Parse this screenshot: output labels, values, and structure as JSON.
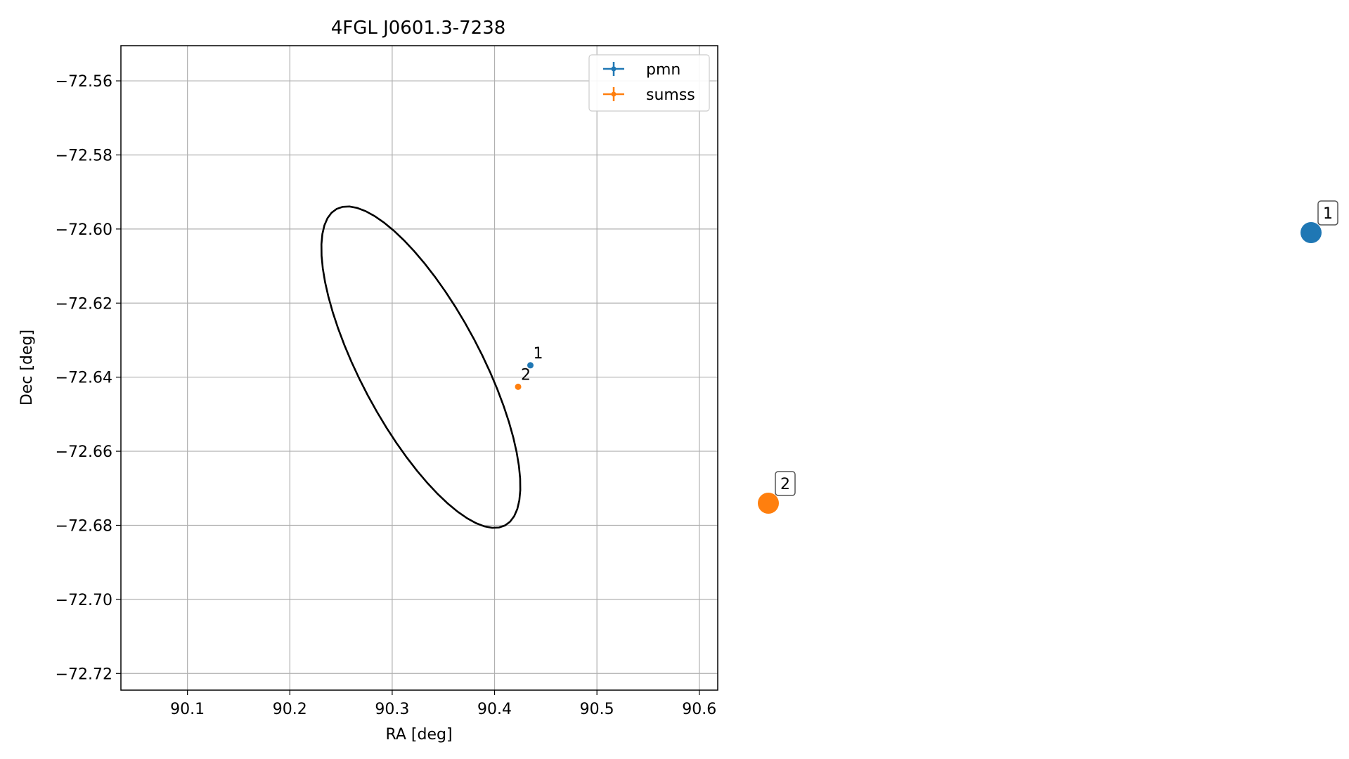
{
  "chart_data": {
    "type": "scatter",
    "title": "4FGL J0601.3-7238",
    "xlabel": "RA [deg]",
    "ylabel": "Dec [deg]",
    "xlim": [
      90.035,
      90.618
    ],
    "ylim": [
      -72.7245,
      -72.5505
    ],
    "xticks": [
      90.1,
      90.2,
      90.3,
      90.4,
      90.5,
      90.6
    ],
    "xtick_labels": [
      "90.1",
      "90.2",
      "90.3",
      "90.4",
      "90.5",
      "90.6"
    ],
    "yticks": [
      -72.56,
      -72.58,
      -72.6,
      -72.62,
      -72.64,
      -72.66,
      -72.68,
      -72.7,
      -72.72
    ],
    "ytick_labels": [
      "−72.56",
      "−72.58",
      "−72.60",
      "−72.62",
      "−72.64",
      "−72.66",
      "−72.68",
      "−72.70",
      "−72.72"
    ],
    "grid": true,
    "legend_position": "top-right",
    "ellipse": {
      "center_ra": 90.328,
      "center_dec": -72.6373,
      "semi_major": 0.0587,
      "semi_minor": 0.0484,
      "color": "#000000"
    },
    "series": [
      {
        "name": "pmn",
        "color": "#1f77b4",
        "points": [
          {
            "label": "1",
            "ra": 90.435,
            "dec": -72.6368
          }
        ]
      },
      {
        "name": "sumss",
        "color": "#ff7f0e",
        "points": [
          {
            "label": "2",
            "ra": 90.423,
            "dec": -72.6426
          }
        ]
      }
    ],
    "side_markers": [
      {
        "label": "1",
        "color": "#1f77b4"
      },
      {
        "label": "2",
        "color": "#ff7f0e"
      }
    ]
  }
}
